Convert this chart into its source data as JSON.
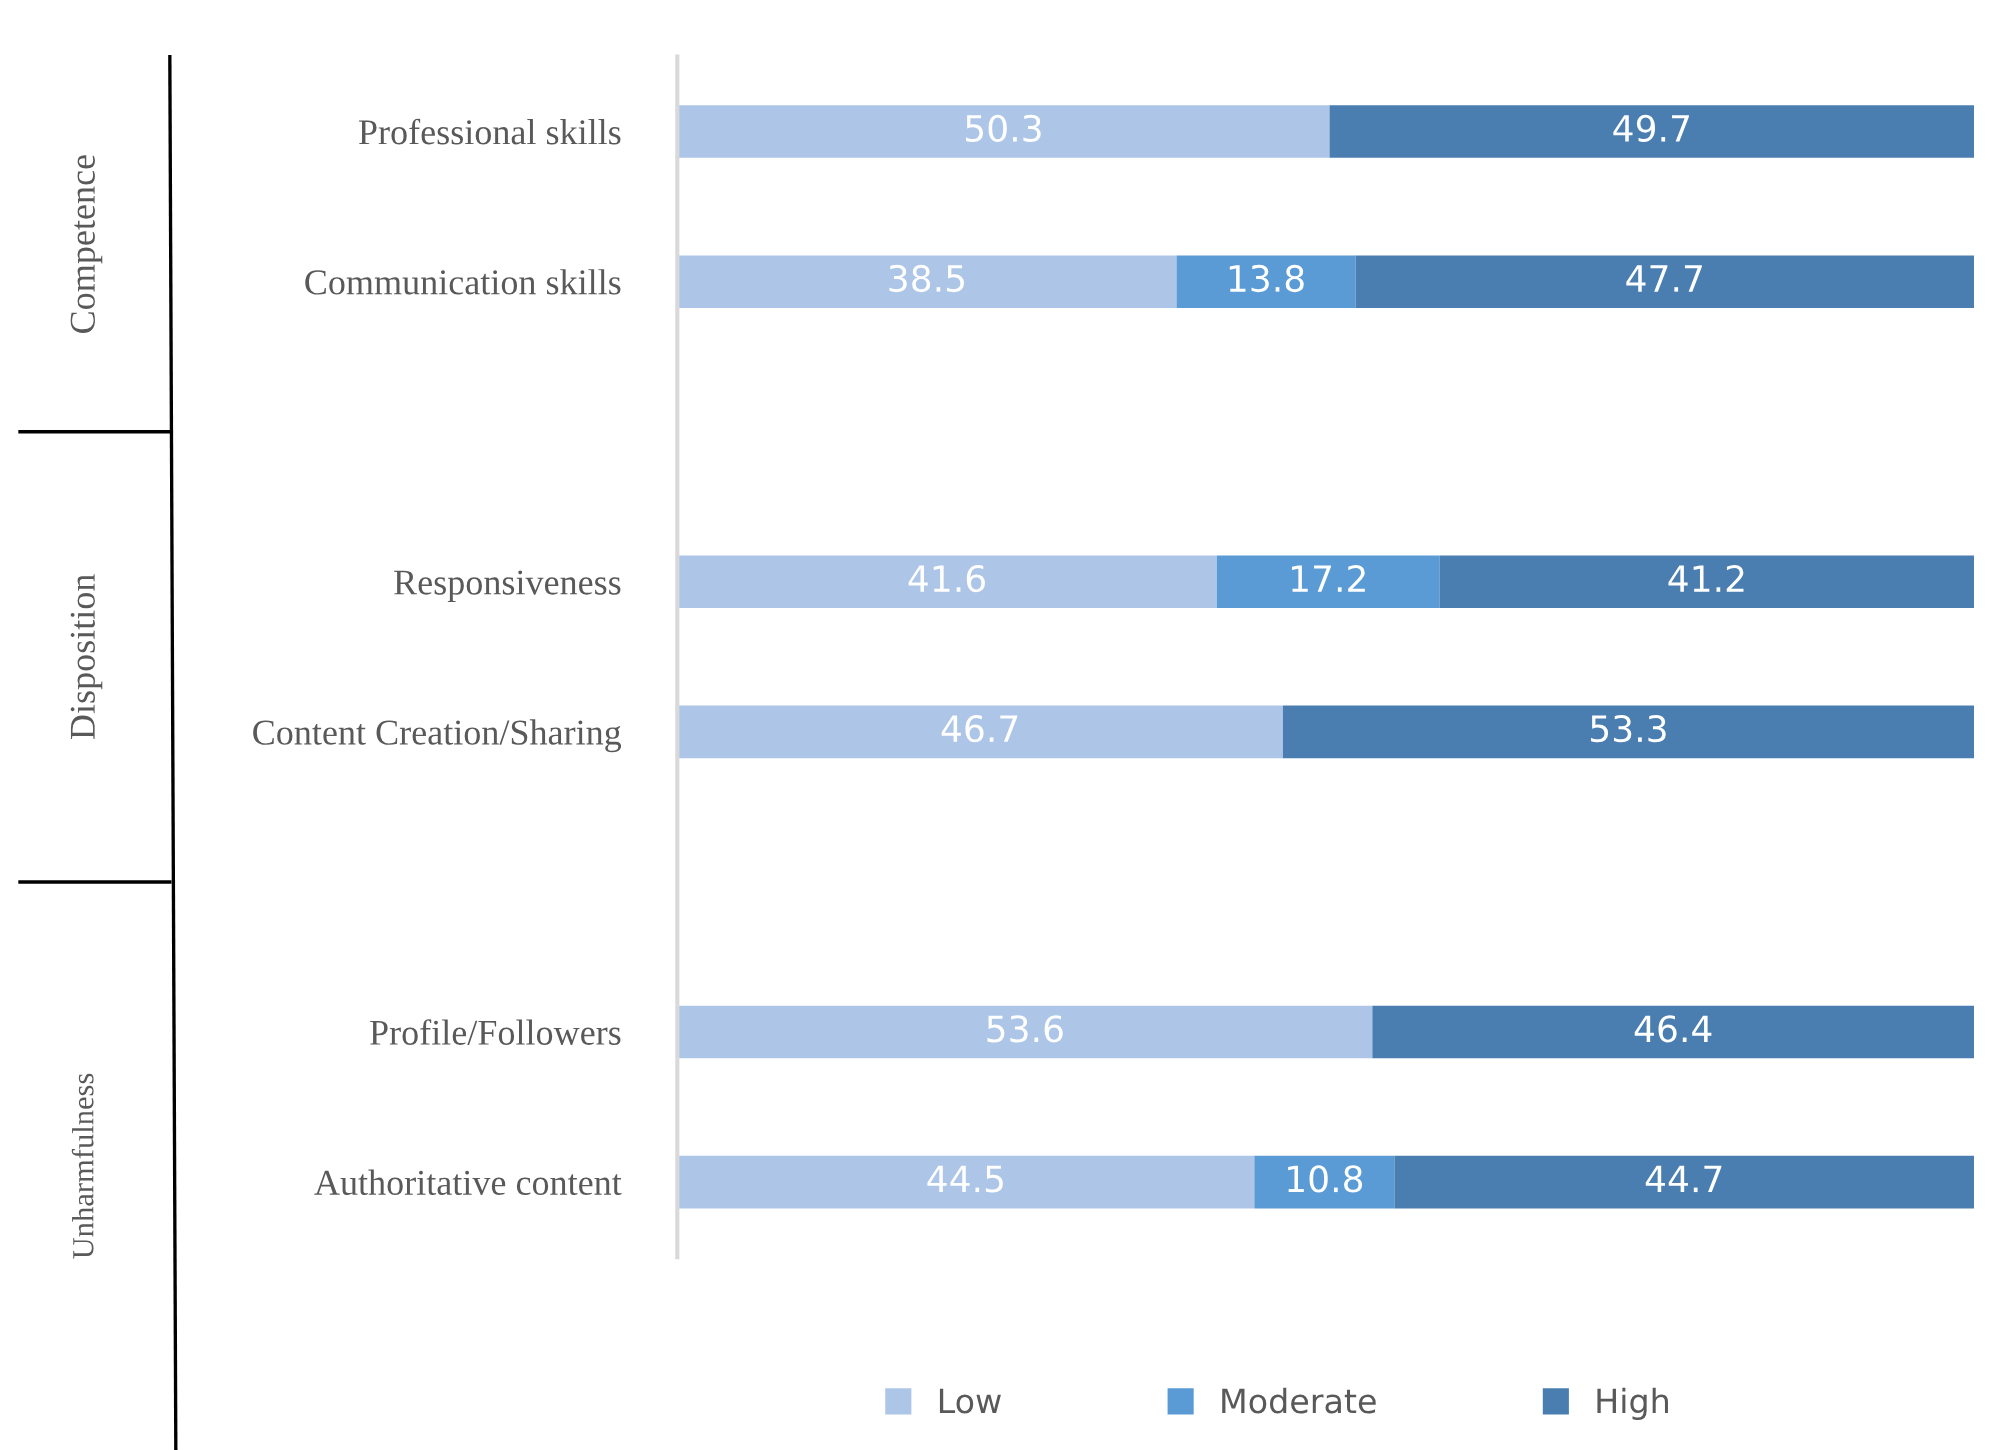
{
  "chart_data": {
    "type": "bar",
    "orientation": "horizontal",
    "stacked": true,
    "categories": [
      "Professional skills",
      "Communication skills",
      null,
      "Responsiveness",
      "Content Creation/Sharing",
      null,
      "Profile/Followers",
      "Authoritative content"
    ],
    "series": [
      {
        "name": "Low",
        "color": "#adc5e7",
        "values": [
          50.3,
          38.5,
          null,
          41.6,
          46.7,
          null,
          53.6,
          44.5
        ]
      },
      {
        "name": "Moderate",
        "color": "#5b9bd5",
        "values": [
          null,
          13.8,
          null,
          17.2,
          null,
          null,
          null,
          10.8
        ]
      },
      {
        "name": "High",
        "color": "#4a7eb0",
        "values": [
          49.7,
          47.7,
          null,
          41.2,
          53.3,
          null,
          46.4,
          44.7
        ]
      }
    ],
    "annotations": [
      "Competence",
      "Disposition",
      "Unharmfulness"
    ],
    "data_labels": true,
    "legend": "bottom"
  }
}
